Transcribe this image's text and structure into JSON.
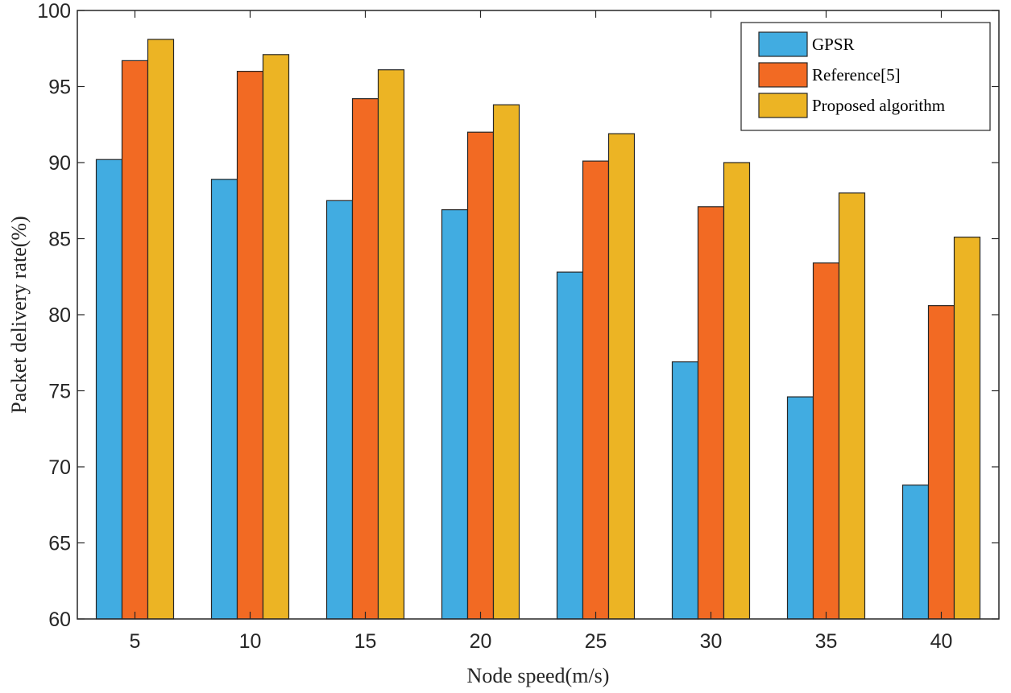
{
  "chart_data": {
    "type": "bar",
    "xlabel": "Node speed(m/s)",
    "ylabel": "Packet delivery rate(%)",
    "categories": [
      "5",
      "10",
      "15",
      "20",
      "25",
      "30",
      "35",
      "40"
    ],
    "ylim": [
      60,
      100
    ],
    "yticks": [
      "60",
      "65",
      "70",
      "75",
      "80",
      "85",
      "90",
      "95",
      "100"
    ],
    "legend_position": "top-right",
    "grid": false,
    "series": [
      {
        "name": "GPSR",
        "color": "#41ACE1",
        "values": [
          90.2,
          88.9,
          87.5,
          86.9,
          82.8,
          76.9,
          74.6,
          68.8
        ]
      },
      {
        "name": "Reference[5]",
        "color": "#F26A23",
        "values": [
          96.7,
          96.0,
          94.2,
          92.0,
          90.1,
          87.1,
          83.4,
          80.6
        ]
      },
      {
        "name": "Proposed algorithm",
        "color": "#ECB424",
        "values": [
          98.1,
          97.1,
          96.1,
          93.8,
          91.9,
          90.0,
          88.0,
          85.1
        ]
      }
    ]
  }
}
